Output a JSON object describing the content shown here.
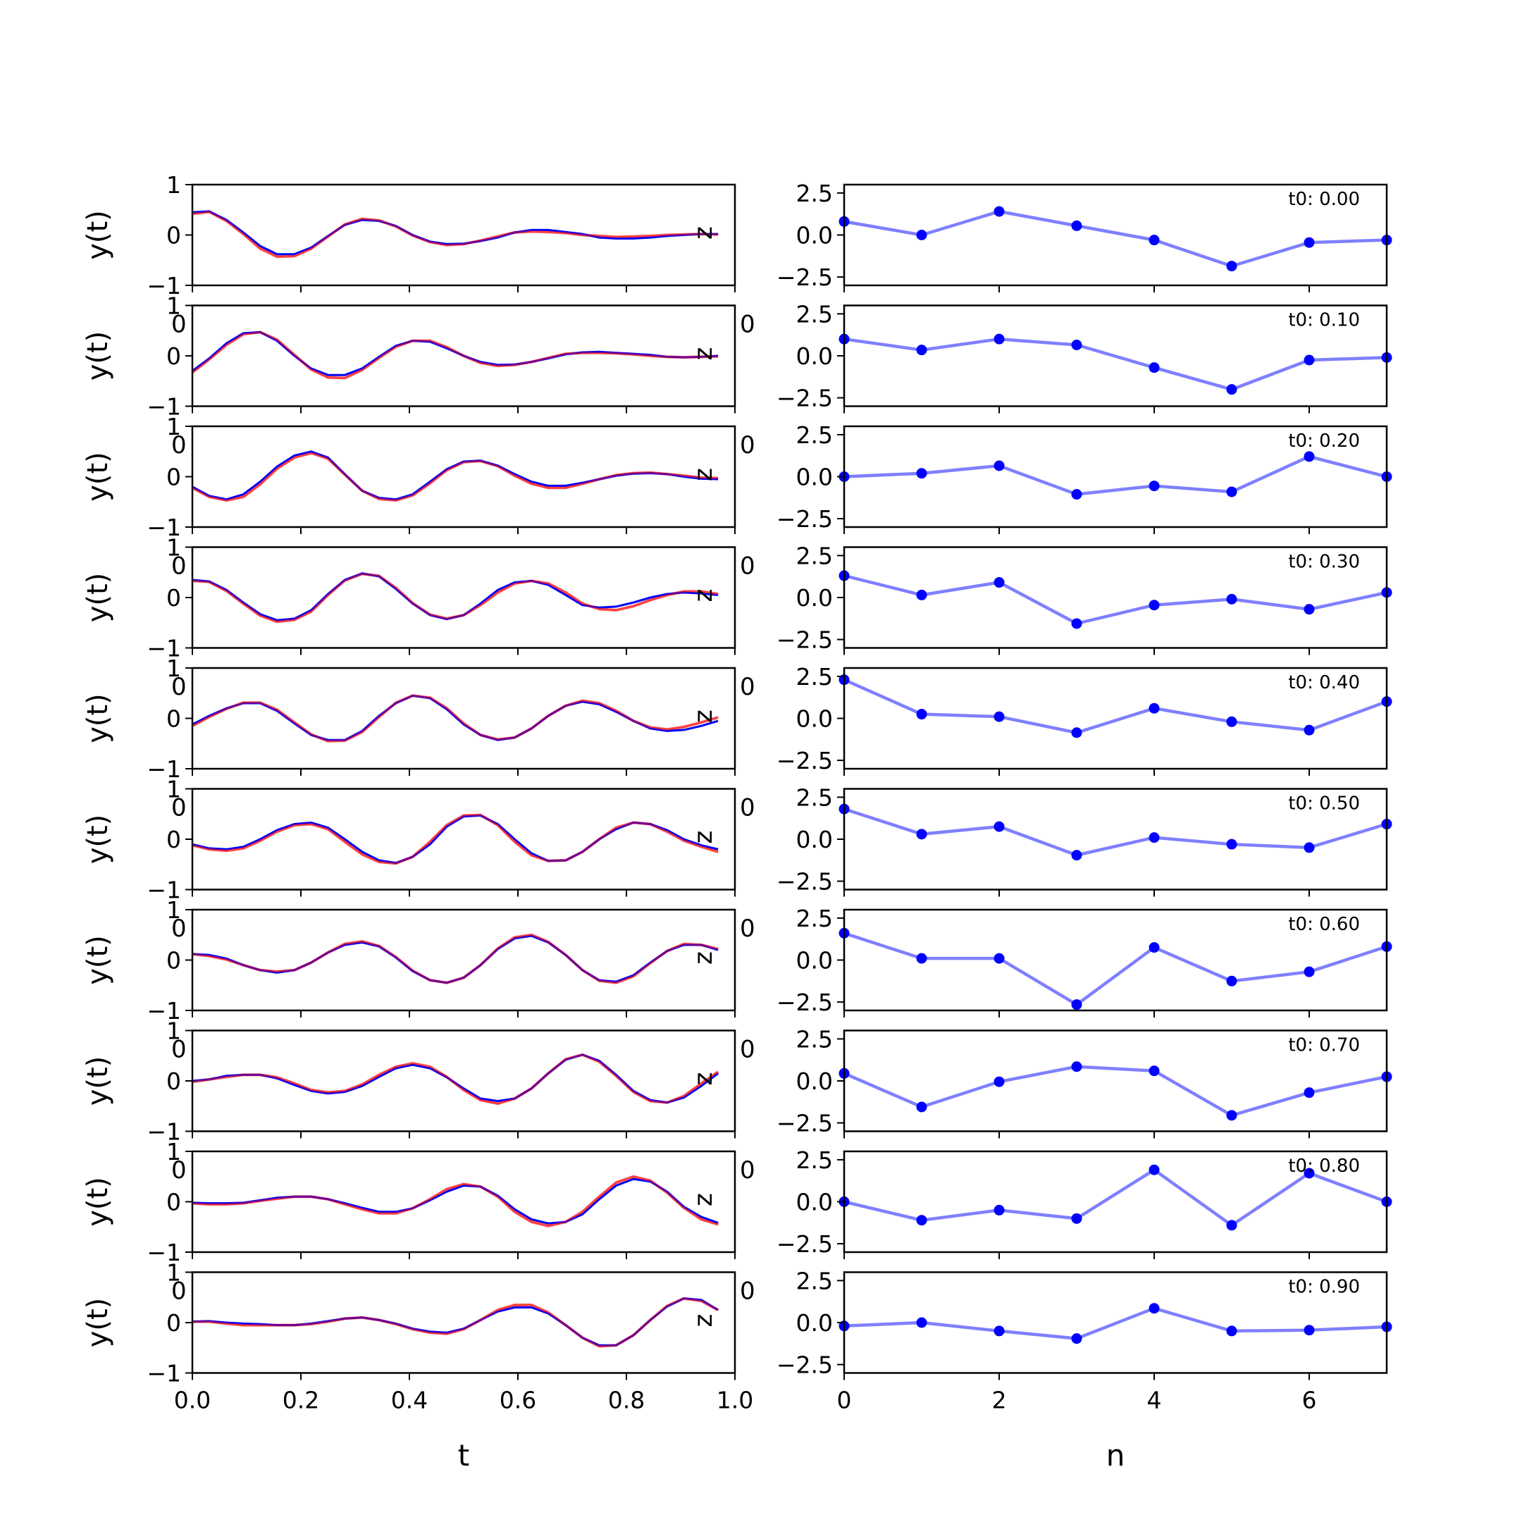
{
  "figure": {
    "left_xlabel": "t",
    "right_xlabel": "n",
    "left_xticks": [
      "0.0",
      "0.2",
      "0.4",
      "0.6",
      "0.8",
      "1.0"
    ],
    "right_xticks": [
      "0",
      "2",
      "4",
      "6"
    ],
    "left_yticks": [
      "1",
      "0",
      "−1"
    ],
    "right_yticks": [
      "2.5",
      "0.0",
      "−2.5"
    ],
    "left_ylabel": "y(t)",
    "right_ylabel": "z",
    "stray_tick_label": "0"
  },
  "chart_data": [
    {
      "type": "line",
      "panel": "left",
      "xlabel": "t",
      "ylabel": "y(t)",
      "xlim": [
        0,
        1
      ],
      "ylim": [
        -1,
        1
      ],
      "t": [
        0.0,
        0.031,
        0.063,
        0.094,
        0.125,
        0.156,
        0.188,
        0.219,
        0.25,
        0.281,
        0.313,
        0.344,
        0.375,
        0.406,
        0.438,
        0.469,
        0.5,
        0.531,
        0.563,
        0.594,
        0.625,
        0.656,
        0.688,
        0.719,
        0.75,
        0.781,
        0.813,
        0.844,
        0.875,
        0.906,
        0.938,
        0.969
      ],
      "series_colors": [
        "#0000ff",
        "#ff0000"
      ],
      "rows": [
        {
          "blue": [
            0.45,
            0.47,
            0.3,
            0.05,
            -0.22,
            -0.38,
            -0.38,
            -0.25,
            -0.02,
            0.2,
            0.3,
            0.28,
            0.18,
            0.0,
            -0.13,
            -0.18,
            -0.17,
            -0.12,
            -0.05,
            0.05,
            0.1,
            0.1,
            0.06,
            0.02,
            -0.05,
            -0.07,
            -0.07,
            -0.05,
            -0.02,
            0.0,
            0.02,
            0.02
          ],
          "red": [
            0.42,
            0.46,
            0.28,
            0.02,
            -0.27,
            -0.43,
            -0.42,
            -0.27,
            -0.03,
            0.21,
            0.32,
            0.29,
            0.17,
            -0.01,
            -0.14,
            -0.2,
            -0.18,
            -0.11,
            -0.03,
            0.05,
            0.07,
            0.06,
            0.04,
            0.0,
            -0.02,
            -0.04,
            -0.03,
            -0.02,
            0.0,
            0.01,
            0.02,
            0.01
          ]
        },
        {
          "blue": [
            -0.3,
            -0.05,
            0.25,
            0.45,
            0.47,
            0.3,
            0.0,
            -0.25,
            -0.38,
            -0.38,
            -0.25,
            -0.02,
            0.2,
            0.3,
            0.28,
            0.15,
            0.0,
            -0.12,
            -0.18,
            -0.17,
            -0.12,
            -0.05,
            0.03,
            0.07,
            0.08,
            0.06,
            0.04,
            0.02,
            -0.02,
            -0.03,
            -0.02,
            0.0
          ],
          "red": [
            -0.33,
            -0.07,
            0.22,
            0.43,
            0.47,
            0.32,
            0.02,
            -0.27,
            -0.43,
            -0.44,
            -0.28,
            -0.04,
            0.18,
            0.3,
            0.3,
            0.17,
            0.0,
            -0.14,
            -0.2,
            -0.18,
            -0.12,
            -0.04,
            0.04,
            0.06,
            0.06,
            0.05,
            0.03,
            0.0,
            -0.02,
            -0.03,
            -0.02,
            -0.01
          ]
        },
        {
          "blue": [
            -0.2,
            -0.38,
            -0.45,
            -0.35,
            -0.1,
            0.2,
            0.42,
            0.5,
            0.38,
            0.05,
            -0.28,
            -0.42,
            -0.45,
            -0.35,
            -0.1,
            0.15,
            0.3,
            0.32,
            0.22,
            0.05,
            -0.1,
            -0.18,
            -0.18,
            -0.12,
            -0.05,
            0.02,
            0.06,
            0.07,
            0.05,
            0.0,
            -0.04,
            -0.05
          ],
          "red": [
            -0.22,
            -0.4,
            -0.47,
            -0.4,
            -0.15,
            0.16,
            0.38,
            0.47,
            0.36,
            0.04,
            -0.28,
            -0.44,
            -0.47,
            -0.37,
            -0.13,
            0.13,
            0.29,
            0.31,
            0.21,
            0.02,
            -0.14,
            -0.22,
            -0.22,
            -0.14,
            -0.05,
            0.03,
            0.07,
            0.08,
            0.05,
            0.02,
            -0.02,
            -0.03
          ]
        },
        {
          "blue": [
            0.35,
            0.32,
            0.15,
            -0.1,
            -0.33,
            -0.45,
            -0.42,
            -0.25,
            0.07,
            0.35,
            0.48,
            0.42,
            0.17,
            -0.12,
            -0.35,
            -0.43,
            -0.35,
            -0.12,
            0.15,
            0.3,
            0.33,
            0.25,
            0.05,
            -0.15,
            -0.2,
            -0.18,
            -0.1,
            0.0,
            0.07,
            0.1,
            0.08,
            0.05
          ],
          "red": [
            0.33,
            0.31,
            0.13,
            -0.12,
            -0.36,
            -0.48,
            -0.44,
            -0.28,
            0.05,
            0.34,
            0.47,
            0.43,
            0.19,
            -0.11,
            -0.34,
            -0.42,
            -0.35,
            -0.15,
            0.1,
            0.28,
            0.33,
            0.28,
            0.1,
            -0.12,
            -0.23,
            -0.25,
            -0.17,
            -0.05,
            0.05,
            0.12,
            0.12,
            0.07
          ]
        },
        {
          "blue": [
            -0.12,
            0.05,
            0.2,
            0.3,
            0.3,
            0.15,
            -0.1,
            -0.33,
            -0.43,
            -0.43,
            -0.25,
            0.05,
            0.3,
            0.45,
            0.4,
            0.18,
            -0.12,
            -0.33,
            -0.43,
            -0.38,
            -0.2,
            0.05,
            0.25,
            0.33,
            0.28,
            0.13,
            -0.05,
            -0.2,
            -0.25,
            -0.23,
            -0.15,
            -0.05
          ],
          "red": [
            -0.15,
            0.03,
            0.19,
            0.31,
            0.31,
            0.17,
            -0.08,
            -0.32,
            -0.45,
            -0.44,
            -0.27,
            0.03,
            0.31,
            0.45,
            0.41,
            0.2,
            -0.1,
            -0.33,
            -0.42,
            -0.38,
            -0.2,
            0.05,
            0.25,
            0.35,
            0.3,
            0.15,
            -0.05,
            -0.18,
            -0.22,
            -0.17,
            -0.08,
            0.02
          ]
        },
        {
          "blue": [
            -0.1,
            -0.18,
            -0.2,
            -0.15,
            0.0,
            0.18,
            0.3,
            0.33,
            0.23,
            0.0,
            -0.25,
            -0.42,
            -0.47,
            -0.35,
            -0.1,
            0.25,
            0.45,
            0.47,
            0.3,
            0.0,
            -0.28,
            -0.43,
            -0.42,
            -0.25,
            0.0,
            0.2,
            0.33,
            0.3,
            0.18,
            0.0,
            -0.12,
            -0.2
          ],
          "red": [
            -0.12,
            -0.2,
            -0.23,
            -0.18,
            -0.03,
            0.15,
            0.28,
            0.3,
            0.2,
            -0.05,
            -0.3,
            -0.45,
            -0.48,
            -0.35,
            -0.05,
            0.28,
            0.47,
            0.48,
            0.28,
            -0.05,
            -0.32,
            -0.43,
            -0.42,
            -0.25,
            0.0,
            0.23,
            0.33,
            0.3,
            0.15,
            -0.03,
            -0.15,
            -0.25
          ]
        },
        {
          "blue": [
            0.12,
            0.1,
            0.03,
            -0.1,
            -0.2,
            -0.25,
            -0.2,
            -0.05,
            0.15,
            0.3,
            0.35,
            0.27,
            0.05,
            -0.22,
            -0.4,
            -0.45,
            -0.35,
            -0.1,
            0.22,
            0.43,
            0.48,
            0.35,
            0.1,
            -0.2,
            -0.4,
            -0.43,
            -0.3,
            -0.05,
            0.18,
            0.3,
            0.3,
            0.2
          ],
          "red": [
            0.12,
            0.08,
            0.01,
            -0.1,
            -0.2,
            -0.23,
            -0.2,
            -0.05,
            0.15,
            0.32,
            0.37,
            0.28,
            0.06,
            -0.21,
            -0.4,
            -0.45,
            -0.35,
            -0.1,
            0.23,
            0.45,
            0.5,
            0.36,
            0.1,
            -0.2,
            -0.41,
            -0.45,
            -0.32,
            -0.06,
            0.18,
            0.32,
            0.3,
            0.22
          ]
        },
        {
          "blue": [
            0.0,
            0.03,
            0.1,
            0.12,
            0.12,
            0.05,
            -0.08,
            -0.2,
            -0.25,
            -0.22,
            -0.1,
            0.08,
            0.25,
            0.32,
            0.25,
            0.07,
            -0.15,
            -0.35,
            -0.4,
            -0.35,
            -0.15,
            0.15,
            0.42,
            0.52,
            0.4,
            0.12,
            -0.2,
            -0.38,
            -0.43,
            -0.33,
            -0.1,
            0.15
          ],
          "red": [
            -0.02,
            0.03,
            0.08,
            0.12,
            0.12,
            0.07,
            -0.05,
            -0.18,
            -0.23,
            -0.2,
            -0.07,
            0.12,
            0.28,
            0.35,
            0.28,
            0.08,
            -0.18,
            -0.38,
            -0.45,
            -0.35,
            -0.15,
            0.15,
            0.43,
            0.52,
            0.38,
            0.1,
            -0.22,
            -0.4,
            -0.43,
            -0.3,
            -0.05,
            0.18
          ]
        },
        {
          "blue": [
            -0.02,
            -0.03,
            -0.03,
            -0.02,
            0.03,
            0.08,
            0.1,
            0.1,
            0.05,
            -0.03,
            -0.12,
            -0.2,
            -0.2,
            -0.13,
            0.03,
            0.2,
            0.32,
            0.3,
            0.12,
            -0.15,
            -0.35,
            -0.43,
            -0.4,
            -0.25,
            0.05,
            0.32,
            0.45,
            0.4,
            0.2,
            -0.1,
            -0.3,
            -0.42
          ],
          "red": [
            -0.03,
            -0.05,
            -0.05,
            -0.03,
            0.02,
            0.06,
            0.1,
            0.1,
            0.05,
            -0.05,
            -0.15,
            -0.23,
            -0.23,
            -0.13,
            0.05,
            0.25,
            0.35,
            0.3,
            0.1,
            -0.2,
            -0.4,
            -0.48,
            -0.4,
            -0.2,
            0.1,
            0.38,
            0.5,
            0.42,
            0.18,
            -0.12,
            -0.35,
            -0.45
          ]
        },
        {
          "blue": [
            0.02,
            0.03,
            0.0,
            -0.02,
            -0.03,
            -0.05,
            -0.05,
            -0.02,
            0.03,
            0.08,
            0.1,
            0.05,
            -0.02,
            -0.12,
            -0.18,
            -0.2,
            -0.12,
            0.05,
            0.22,
            0.3,
            0.3,
            0.18,
            -0.05,
            -0.3,
            -0.45,
            -0.45,
            -0.25,
            0.05,
            0.32,
            0.48,
            0.45,
            0.25
          ],
          "red": [
            0.02,
            0.02,
            -0.02,
            -0.05,
            -0.05,
            -0.05,
            -0.05,
            -0.03,
            0.02,
            0.08,
            0.1,
            0.05,
            -0.03,
            -0.13,
            -0.2,
            -0.22,
            -0.13,
            0.05,
            0.25,
            0.35,
            0.35,
            0.2,
            -0.05,
            -0.3,
            -0.47,
            -0.45,
            -0.25,
            0.05,
            0.33,
            0.48,
            0.43,
            0.25
          ]
        }
      ]
    },
    {
      "type": "line",
      "panel": "right",
      "xlabel": "n",
      "ylabel": "z",
      "xlim": [
        0,
        7
      ],
      "ylim": [
        -3,
        3
      ],
      "x": [
        0,
        1,
        2,
        3,
        4,
        5,
        6,
        7
      ],
      "series_color": "#0000ff",
      "rows": [
        {
          "label": "t0: 0.00",
          "values": [
            0.8,
            0.0,
            1.4,
            0.55,
            -0.3,
            -1.85,
            -0.45,
            -0.3
          ]
        },
        {
          "label": "t0: 0.10",
          "values": [
            1.0,
            0.35,
            1.0,
            0.65,
            -0.7,
            -2.0,
            -0.25,
            -0.1
          ]
        },
        {
          "label": "t0: 0.20",
          "values": [
            0.0,
            0.2,
            0.65,
            -1.05,
            -0.55,
            -0.9,
            1.2,
            0.0
          ]
        },
        {
          "label": "t0: 0.30",
          "values": [
            1.3,
            0.15,
            0.9,
            -1.55,
            -0.45,
            -0.1,
            -0.7,
            0.3
          ]
        },
        {
          "label": "t0: 0.40",
          "values": [
            2.3,
            0.25,
            0.1,
            -0.85,
            0.6,
            -0.2,
            -0.7,
            1.0
          ]
        },
        {
          "label": "t0: 0.50",
          "values": [
            1.8,
            0.3,
            0.75,
            -0.95,
            0.1,
            -0.3,
            -0.5,
            0.9
          ]
        },
        {
          "label": "t0: 0.60",
          "values": [
            1.6,
            0.1,
            0.1,
            -2.65,
            0.75,
            -1.25,
            -0.7,
            0.8
          ]
        },
        {
          "label": "t0: 0.70",
          "values": [
            0.45,
            -1.55,
            -0.05,
            0.85,
            0.6,
            -2.05,
            -0.7,
            0.25
          ]
        },
        {
          "label": "t0: 0.80",
          "values": [
            0.0,
            -1.1,
            -0.5,
            -1.0,
            1.9,
            -1.4,
            1.7,
            0.0
          ]
        },
        {
          "label": "t0: 0.90",
          "values": [
            -0.2,
            0.0,
            -0.5,
            -0.95,
            0.85,
            -0.5,
            -0.45,
            -0.25
          ]
        }
      ]
    }
  ]
}
